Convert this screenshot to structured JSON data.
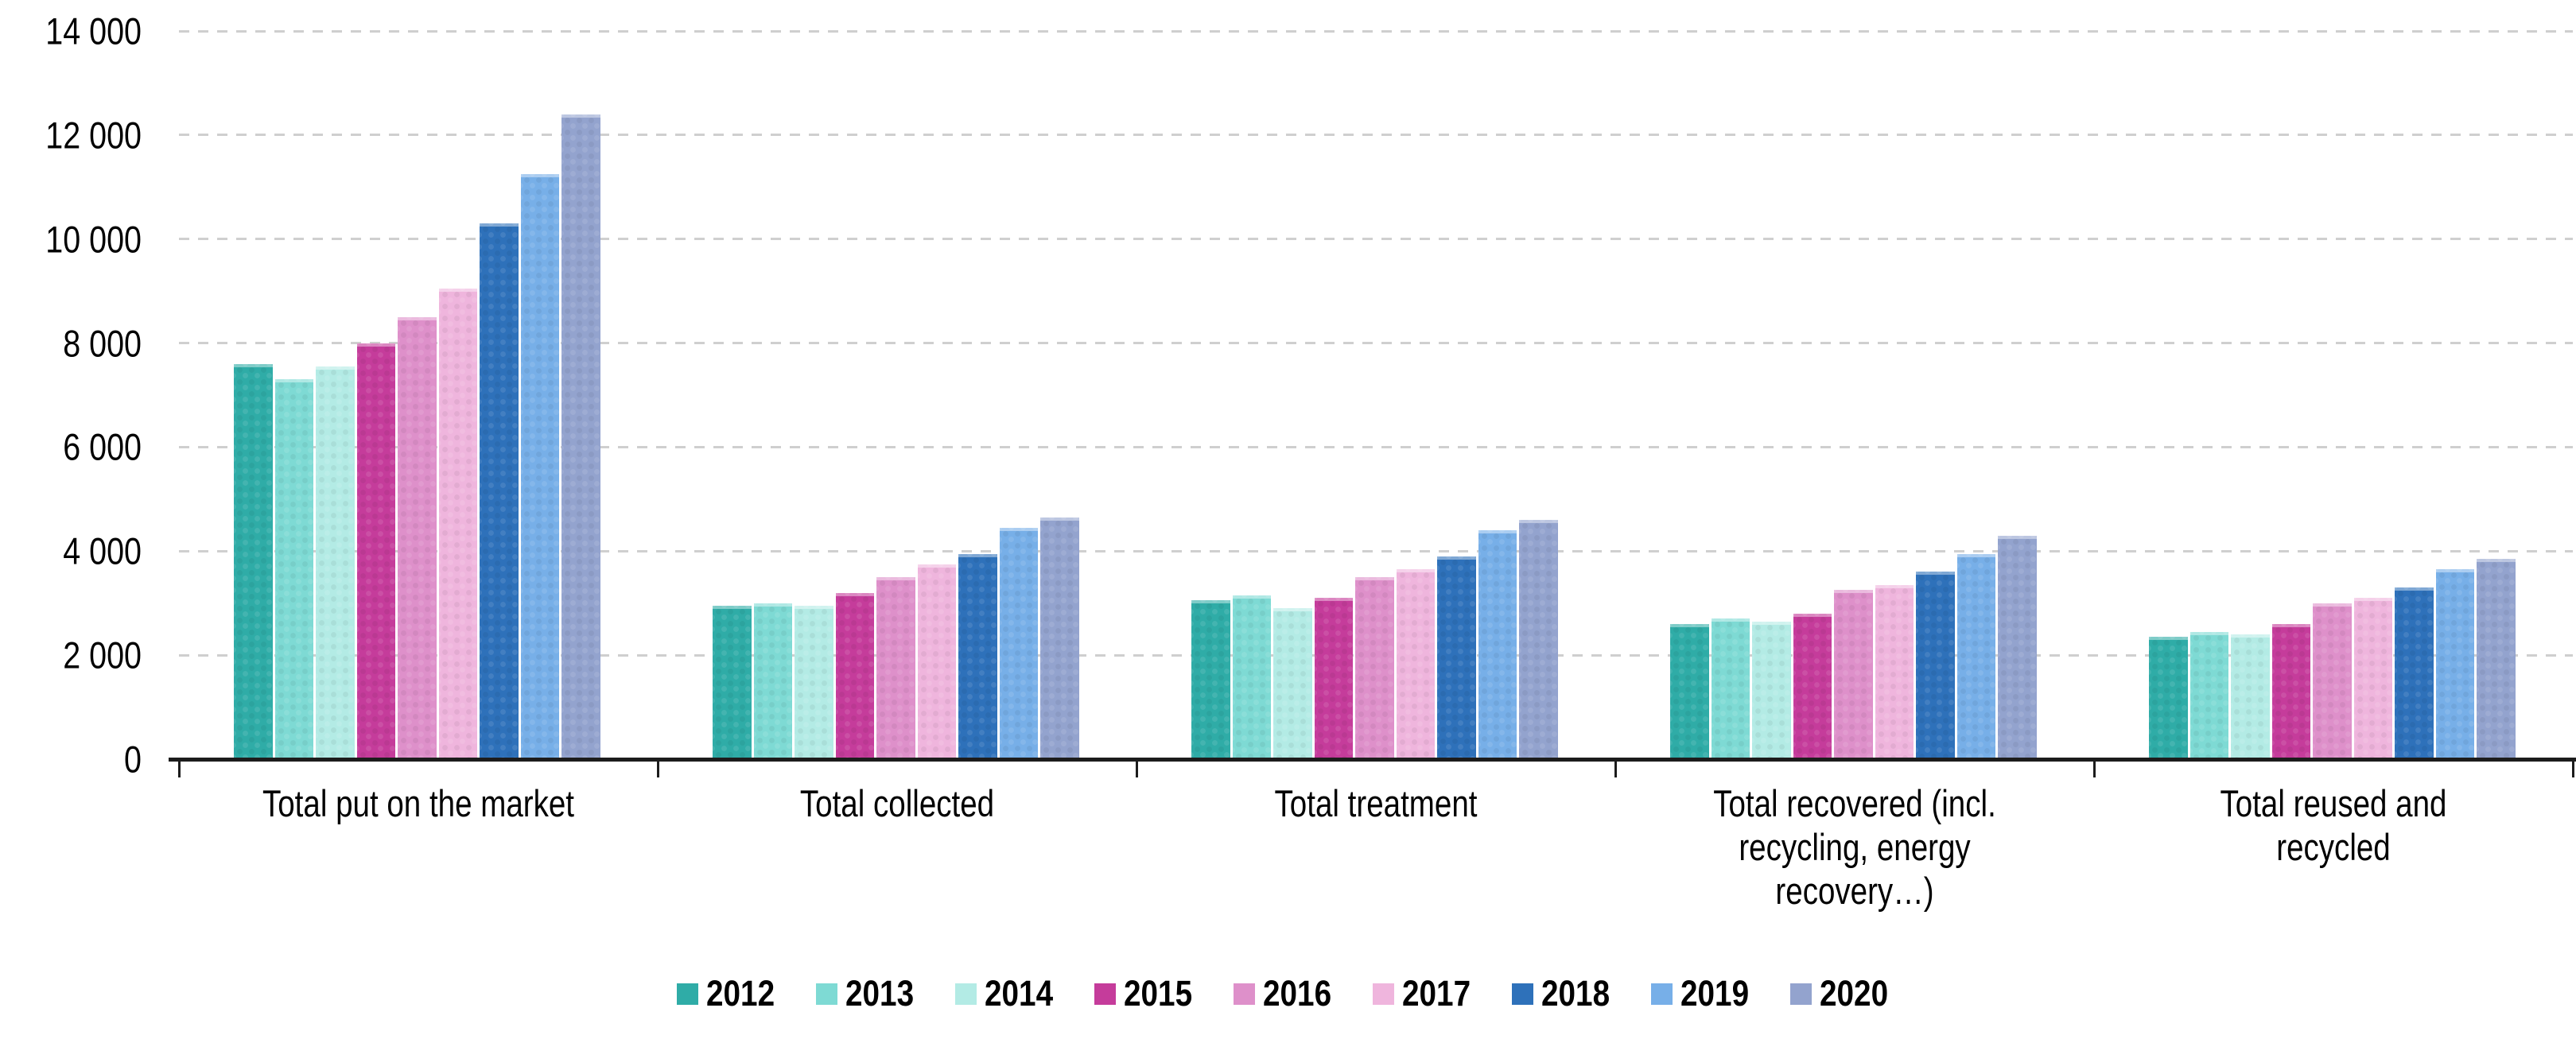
{
  "chart_data": {
    "type": "bar",
    "title": "",
    "categories": [
      "Total put on the market",
      "Total collected",
      "Total treatment",
      "Total recovered (incl.\nrecycling, energy\nrecovery…)",
      "Total reused and\nrecycled"
    ],
    "series": [
      {
        "name": "2012",
        "color": "#2FACA7",
        "values": [
          7600,
          2950,
          3050,
          2600,
          2350
        ]
      },
      {
        "name": "2013",
        "color": "#7EDAD4",
        "values": [
          7300,
          3000,
          3150,
          2700,
          2450
        ]
      },
      {
        "name": "2014",
        "color": "#B3EBE5",
        "values": [
          7550,
          2950,
          2900,
          2650,
          2400
        ]
      },
      {
        "name": "2015",
        "color": "#C53C9B",
        "values": [
          8000,
          3200,
          3100,
          2800,
          2600
        ]
      },
      {
        "name": "2016",
        "color": "#DE90CA",
        "values": [
          8500,
          3500,
          3500,
          3250,
          3000
        ]
      },
      {
        "name": "2017",
        "color": "#EFB5DD",
        "values": [
          9050,
          3750,
          3650,
          3350,
          3100
        ]
      },
      {
        "name": "2018",
        "color": "#2E71BA",
        "values": [
          10300,
          3950,
          3900,
          3600,
          3300
        ]
      },
      {
        "name": "2019",
        "color": "#77AFE8",
        "values": [
          11250,
          4450,
          4400,
          3950,
          3650
        ]
      },
      {
        "name": "2020",
        "color": "#93A3CE",
        "values": [
          12400,
          4650,
          4600,
          4300,
          3850
        ]
      }
    ],
    "ylim": [
      0,
      14000
    ],
    "yticks": [
      {
        "value": 0,
        "label": "0"
      },
      {
        "value": 2000,
        "label": "2 000"
      },
      {
        "value": 4000,
        "label": "4 000"
      },
      {
        "value": 6000,
        "label": "6 000"
      },
      {
        "value": 8000,
        "label": "8 000"
      },
      {
        "value": 10000,
        "label": "10 000"
      },
      {
        "value": 12000,
        "label": "12 000"
      },
      {
        "value": 14000,
        "label": "14 000"
      }
    ],
    "grid": "horizontal-dashed",
    "legend_position": "bottom"
  },
  "colors": {
    "grid": "#cfcfcf",
    "axis": "#1c1c1c",
    "text": "#000000",
    "background": "#ffffff"
  }
}
